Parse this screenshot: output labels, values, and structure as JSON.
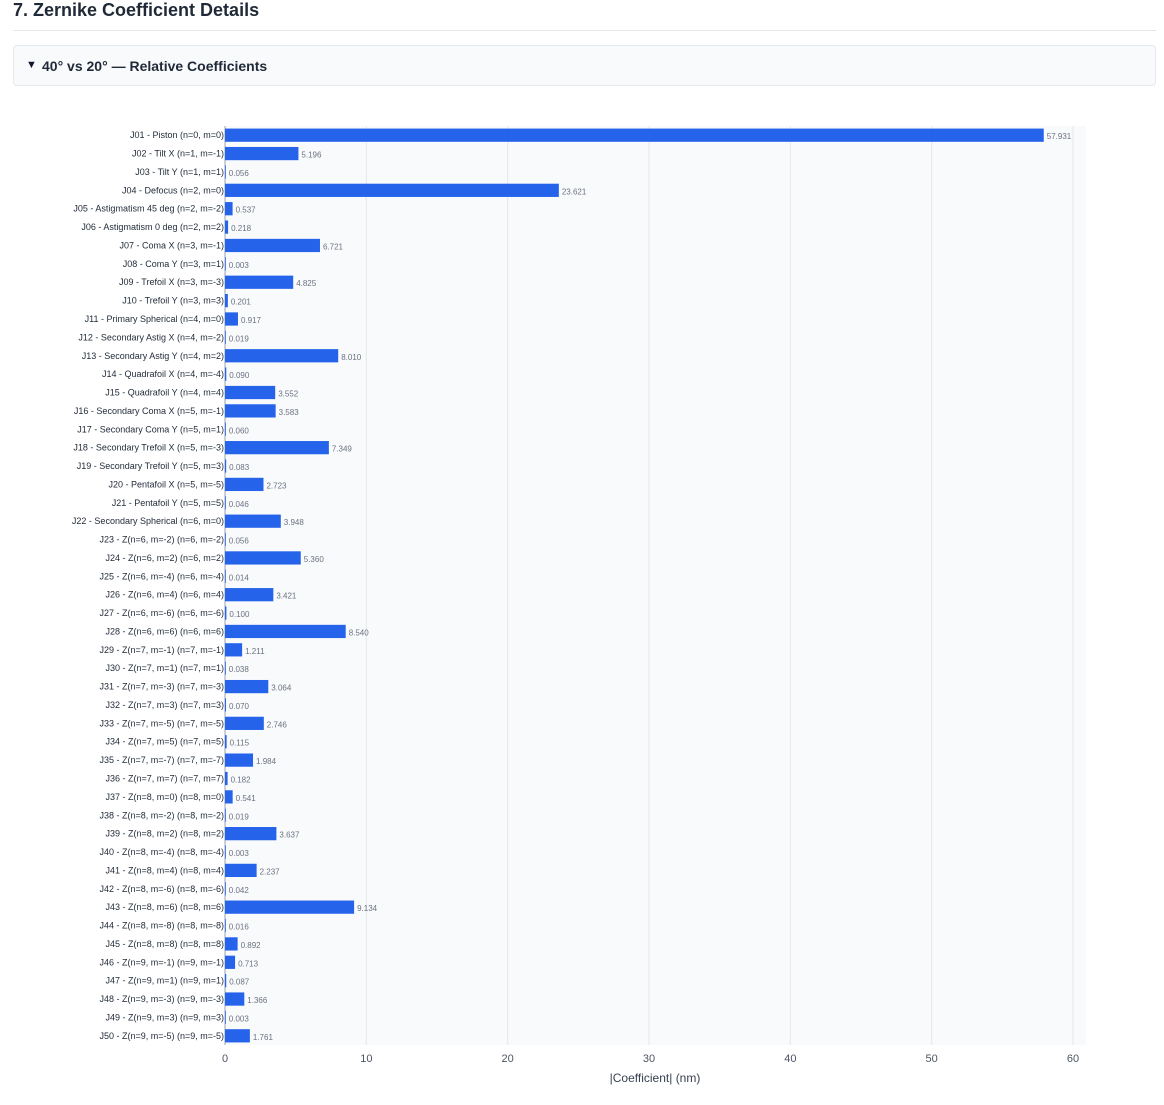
{
  "section": {
    "title": "7. Zernike Coefficient Details",
    "toggle_icon": "▼",
    "details_label": "40° vs 20° — Relative Coefficients"
  },
  "colors": {
    "bar": "#2563eb",
    "plot_bg": "#f8fafc",
    "grid": "#e5e7eb"
  },
  "chart_data": {
    "type": "bar",
    "orientation": "horizontal",
    "xlabel": "|Coefficient| (nm)",
    "ylabel": "",
    "xlim": [
      0,
      60
    ],
    "xticks": [
      0,
      10,
      20,
      30,
      40,
      50,
      60
    ],
    "grid": true,
    "categories": [
      "J01 - Piston (n=0, m=0)",
      "J02 - Tilt X (n=1, m=-1)",
      "J03 - Tilt Y (n=1, m=1)",
      "J04 - Defocus (n=2, m=0)",
      "J05 - Astigmatism 45 deg (n=2, m=-2)",
      "J06 - Astigmatism 0 deg (n=2, m=2)",
      "J07 - Coma X (n=3, m=-1)",
      "J08 - Coma Y (n=3, m=1)",
      "J09 - Trefoil X (n=3, m=-3)",
      "J10 - Trefoil Y (n=3, m=3)",
      "J11 - Primary Spherical (n=4, m=0)",
      "J12 - Secondary Astig X (n=4, m=-2)",
      "J13 - Secondary Astig Y (n=4, m=2)",
      "J14 - Quadrafoil X (n=4, m=-4)",
      "J15 - Quadrafoil Y (n=4, m=4)",
      "J16 - Secondary Coma X (n=5, m=-1)",
      "J17 - Secondary Coma Y (n=5, m=1)",
      "J18 - Secondary Trefoil X (n=5, m=-3)",
      "J19 - Secondary Trefoil Y (n=5, m=3)",
      "J20 - Pentafoil X (n=5, m=-5)",
      "J21 - Pentafoil Y (n=5, m=5)",
      "J22 - Secondary Spherical (n=6, m=0)",
      "J23 - Z(n=6, m=-2) (n=6, m=-2)",
      "J24 - Z(n=6, m=2) (n=6, m=2)",
      "J25 - Z(n=6, m=-4) (n=6, m=-4)",
      "J26 - Z(n=6, m=4) (n=6, m=4)",
      "J27 - Z(n=6, m=-6) (n=6, m=-6)",
      "J28 - Z(n=6, m=6) (n=6, m=6)",
      "J29 - Z(n=7, m=-1) (n=7, m=-1)",
      "J30 - Z(n=7, m=1) (n=7, m=1)",
      "J31 - Z(n=7, m=-3) (n=7, m=-3)",
      "J32 - Z(n=7, m=3) (n=7, m=3)",
      "J33 - Z(n=7, m=-5) (n=7, m=-5)",
      "J34 - Z(n=7, m=5) (n=7, m=5)",
      "J35 - Z(n=7, m=-7) (n=7, m=-7)",
      "J36 - Z(n=7, m=7) (n=7, m=7)",
      "J37 - Z(n=8, m=0) (n=8, m=0)",
      "J38 - Z(n=8, m=-2) (n=8, m=-2)",
      "J39 - Z(n=8, m=2) (n=8, m=2)",
      "J40 - Z(n=8, m=-4) (n=8, m=-4)",
      "J41 - Z(n=8, m=4) (n=8, m=4)",
      "J42 - Z(n=8, m=-6) (n=8, m=-6)",
      "J43 - Z(n=8, m=6) (n=8, m=6)",
      "J44 - Z(n=8, m=-8) (n=8, m=-8)",
      "J45 - Z(n=8, m=8) (n=8, m=8)",
      "J46 - Z(n=9, m=-1) (n=9, m=-1)",
      "J47 - Z(n=9, m=1) (n=9, m=1)",
      "J48 - Z(n=9, m=-3) (n=9, m=-3)",
      "J49 - Z(n=9, m=3) (n=9, m=3)",
      "J50 - Z(n=9, m=-5) (n=9, m=-5)"
    ],
    "values": [
      57.931,
      5.196,
      0.056,
      23.621,
      0.537,
      0.218,
      6.721,
      0.003,
      4.825,
      0.201,
      0.917,
      0.019,
      8.01,
      0.09,
      3.552,
      3.583,
      0.06,
      7.349,
      0.083,
      2.723,
      0.046,
      3.948,
      0.056,
      5.36,
      0.014,
      3.421,
      0.1,
      8.54,
      1.211,
      0.038,
      3.064,
      0.07,
      2.746,
      0.115,
      1.984,
      0.182,
      0.541,
      0.019,
      3.637,
      0.003,
      2.237,
      0.042,
      9.134,
      0.016,
      0.892,
      0.713,
      0.087,
      1.366,
      0.003,
      1.761
    ],
    "value_labels": [
      "57.931",
      "5.196",
      "0.056",
      "23.621",
      "0.537",
      "0.218",
      "6.721",
      "0.003",
      "4.825",
      "0.201",
      "0.917",
      "0.019",
      "8.010",
      "0.090",
      "3.552",
      "3.583",
      "0.060",
      "7.349",
      "0.083",
      "2.723",
      "0.046",
      "3.948",
      "0.056",
      "5.360",
      "0.014",
      "3.421",
      "0.100",
      "8.540",
      "1.211",
      "0.038",
      "3.064",
      "0.070",
      "2.746",
      "0.115",
      "1.984",
      "0.182",
      "0.541",
      "0.019",
      "3.637",
      "0.003",
      "2.237",
      "0.042",
      "9.134",
      "0.016",
      "0.892",
      "0.713",
      "0.087",
      "1.366",
      "0.003",
      "1.761"
    ]
  }
}
